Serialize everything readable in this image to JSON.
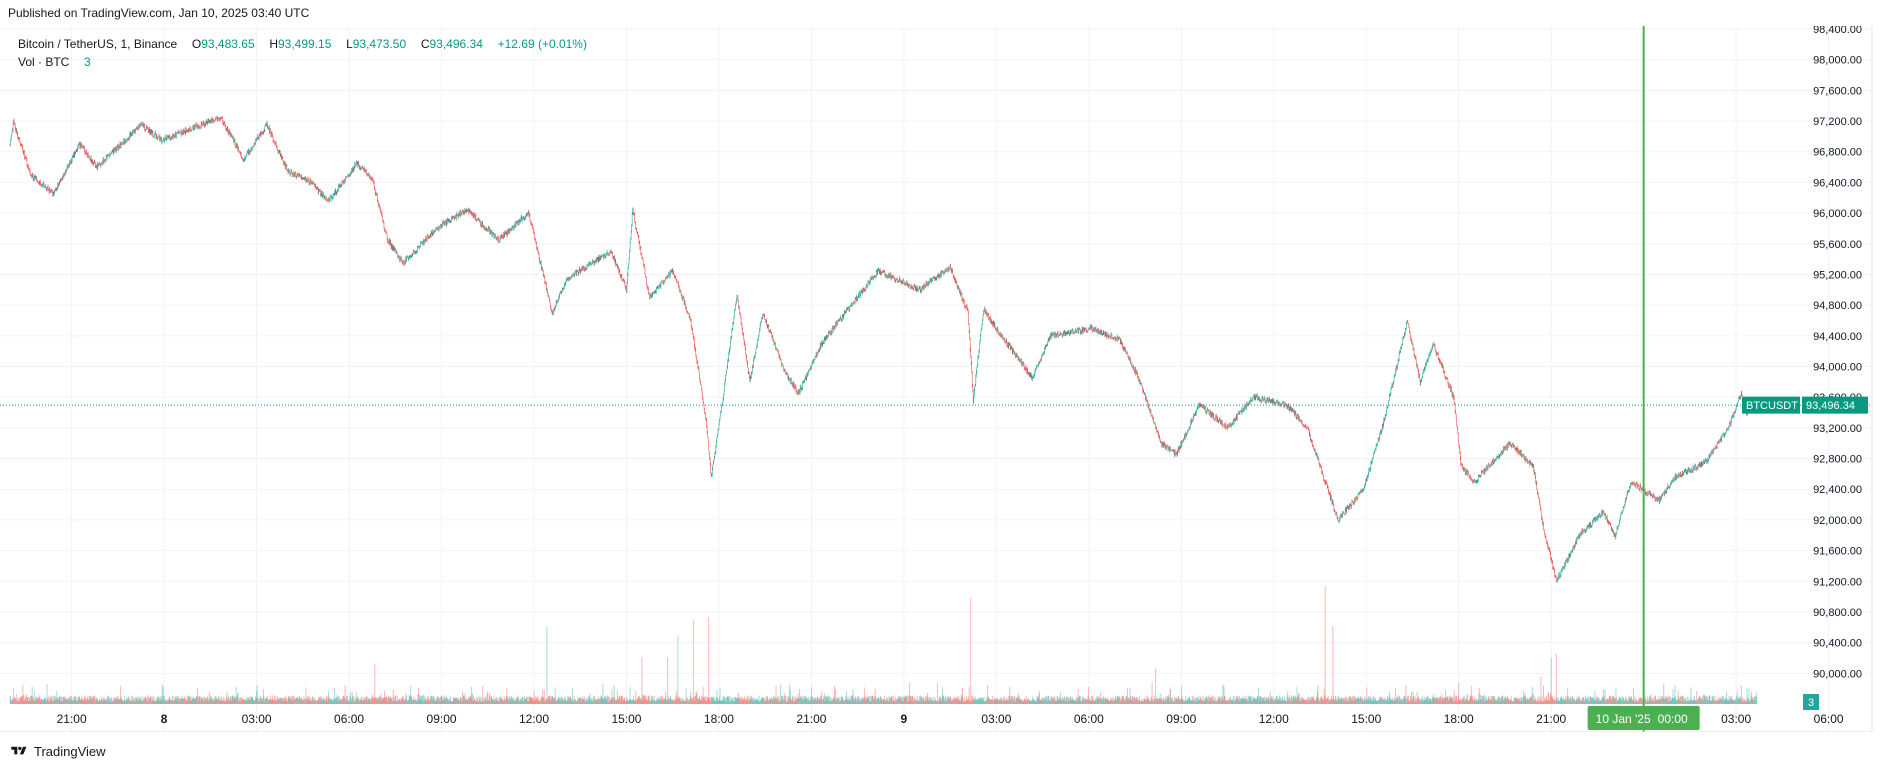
{
  "header": {
    "published": "Published on TradingView.com, Jan 10, 2025 03:40 UTC"
  },
  "legend": {
    "symbol": "Bitcoin / TetherUS, 1, Binance",
    "o_label": "O",
    "o_value": "93,483.65",
    "h_label": "H",
    "h_value": "93,499.15",
    "l_label": "L",
    "l_value": "93,473.50",
    "c_label": "C",
    "c_value": "93,496.34",
    "change": "+12.69 (+0.01%)",
    "vol_label": "Vol · BTC",
    "vol_value": "3"
  },
  "price_tag": {
    "symbol": "BTCUSDT",
    "value": "93,496.34"
  },
  "volume_tag": {
    "value": "3"
  },
  "crosshair_label": {
    "date": "10 Jan '25",
    "time": "00:00"
  },
  "footer": {
    "brand": "TradingView"
  },
  "colors": {
    "up": "#26a69a",
    "down": "#ef5350",
    "vol_up": "#26a69a",
    "vol_down": "#ef5350",
    "last_price": "#089981",
    "crosshair": "#4caf50",
    "grid": "#f0f3fa",
    "text": "#131722"
  },
  "chart_data": {
    "type": "candlestick",
    "interval_minutes": 1,
    "x_range": [
      "2025-01-07 19:00",
      "2025-01-10 07:05"
    ],
    "last_bar_time": "2025-01-10 03:40",
    "ylim": [
      89600,
      98400
    ],
    "y_ticks": [
      "98,400.00",
      "98,000.00",
      "97,600.00",
      "97,200.00",
      "96,800.00",
      "96,400.00",
      "96,000.00",
      "95,600.00",
      "95,200.00",
      "94,800.00",
      "94,400.00",
      "94,000.00",
      "93,600.00",
      "93,200.00",
      "92,800.00",
      "92,400.00",
      "92,000.00",
      "91,600.00",
      "91,200.00",
      "90,800.00",
      "90,400.00",
      "90,000.00"
    ],
    "x_ticks": [
      {
        "label": "21:00",
        "t": "2025-01-07 21:00",
        "bold": false
      },
      {
        "label": "8",
        "t": "2025-01-08 00:00",
        "bold": true
      },
      {
        "label": "03:00",
        "t": "2025-01-08 03:00",
        "bold": false
      },
      {
        "label": "06:00",
        "t": "2025-01-08 06:00",
        "bold": false
      },
      {
        "label": "09:00",
        "t": "2025-01-08 09:00",
        "bold": false
      },
      {
        "label": "12:00",
        "t": "2025-01-08 12:00",
        "bold": false
      },
      {
        "label": "15:00",
        "t": "2025-01-08 15:00",
        "bold": false
      },
      {
        "label": "18:00",
        "t": "2025-01-08 18:00",
        "bold": false
      },
      {
        "label": "21:00",
        "t": "2025-01-08 21:00",
        "bold": false
      },
      {
        "label": "9",
        "t": "2025-01-09 00:00",
        "bold": true
      },
      {
        "label": "03:00",
        "t": "2025-01-09 03:00",
        "bold": false
      },
      {
        "label": "06:00",
        "t": "2025-01-09 06:00",
        "bold": false
      },
      {
        "label": "09:00",
        "t": "2025-01-09 09:00",
        "bold": false
      },
      {
        "label": "12:00",
        "t": "2025-01-09 12:00",
        "bold": false
      },
      {
        "label": "15:00",
        "t": "2025-01-09 15:00",
        "bold": false
      },
      {
        "label": "18:00",
        "t": "2025-01-09 18:00",
        "bold": false
      },
      {
        "label": "21:00",
        "t": "2025-01-09 21:00",
        "bold": false
      },
      {
        "label": "03:00",
        "t": "2025-01-10 03:00",
        "bold": false
      },
      {
        "label": "06:00",
        "t": "2025-01-10 06:00",
        "bold": false
      }
    ],
    "crosshair_time": "2025-01-10 00:00",
    "last_price": 93496.34,
    "price_path": [
      {
        "t": "2025-01-07 19:00",
        "price": 96900
      },
      {
        "t": "2025-01-07 19:07",
        "price": 97180
      },
      {
        "t": "2025-01-07 19:40",
        "price": 96500
      },
      {
        "t": "2025-01-07 20:25",
        "price": 96250
      },
      {
        "t": "2025-01-07 21:15",
        "price": 96900
      },
      {
        "t": "2025-01-07 21:50",
        "price": 96600
      },
      {
        "t": "2025-01-07 23:15",
        "price": 97150
      },
      {
        "t": "2025-01-07 23:55",
        "price": 96950
      },
      {
        "t": "2025-01-08 01:50",
        "price": 97250
      },
      {
        "t": "2025-01-08 02:35",
        "price": 96700
      },
      {
        "t": "2025-01-08 03:20",
        "price": 97150
      },
      {
        "t": "2025-01-08 04:00",
        "price": 96550
      },
      {
        "t": "2025-01-08 04:45",
        "price": 96400
      },
      {
        "t": "2025-01-08 05:20",
        "price": 96150
      },
      {
        "t": "2025-01-08 06:15",
        "price": 96650
      },
      {
        "t": "2025-01-08 06:45",
        "price": 96450
      },
      {
        "t": "2025-01-08 07:15",
        "price": 95650
      },
      {
        "t": "2025-01-08 07:45",
        "price": 95350
      },
      {
        "t": "2025-01-08 08:50",
        "price": 95800
      },
      {
        "t": "2025-01-08 09:50",
        "price": 96050
      },
      {
        "t": "2025-01-08 10:50",
        "price": 95650
      },
      {
        "t": "2025-01-08 11:50",
        "price": 96000
      },
      {
        "t": "2025-01-08 12:35",
        "price": 94700
      },
      {
        "t": "2025-01-08 13:05",
        "price": 95150
      },
      {
        "t": "2025-01-08 14:30",
        "price": 95500
      },
      {
        "t": "2025-01-08 15:00",
        "price": 95000
      },
      {
        "t": "2025-01-08 15:12",
        "price": 96050
      },
      {
        "t": "2025-01-08 15:45",
        "price": 94900
      },
      {
        "t": "2025-01-08 16:30",
        "price": 95250
      },
      {
        "t": "2025-01-08 17:05",
        "price": 94600
      },
      {
        "t": "2025-01-08 17:35",
        "price": 93300
      },
      {
        "t": "2025-01-08 17:45",
        "price": 92550
      },
      {
        "t": "2025-01-08 18:10",
        "price": 93700
      },
      {
        "t": "2025-01-08 18:35",
        "price": 94950
      },
      {
        "t": "2025-01-08 19:00",
        "price": 93800
      },
      {
        "t": "2025-01-08 19:25",
        "price": 94700
      },
      {
        "t": "2025-01-08 20:10",
        "price": 93900
      },
      {
        "t": "2025-01-08 20:35",
        "price": 93650
      },
      {
        "t": "2025-01-08 21:20",
        "price": 94300
      },
      {
        "t": "2025-01-08 22:00",
        "price": 94650
      },
      {
        "t": "2025-01-08 23:10",
        "price": 95250
      },
      {
        "t": "2025-01-09 00:30",
        "price": 95000
      },
      {
        "t": "2025-01-09 01:30",
        "price": 95300
      },
      {
        "t": "2025-01-09 02:05",
        "price": 94700
      },
      {
        "t": "2025-01-09 02:15",
        "price": 93550
      },
      {
        "t": "2025-01-09 02:35",
        "price": 94750
      },
      {
        "t": "2025-01-09 03:10",
        "price": 94400
      },
      {
        "t": "2025-01-09 04:10",
        "price": 93850
      },
      {
        "t": "2025-01-09 04:45",
        "price": 94400
      },
      {
        "t": "2025-01-09 06:05",
        "price": 94500
      },
      {
        "t": "2025-01-09 07:00",
        "price": 94350
      },
      {
        "t": "2025-01-09 07:40",
        "price": 93800
      },
      {
        "t": "2025-01-09 08:20",
        "price": 93000
      },
      {
        "t": "2025-01-09 08:50",
        "price": 92850
      },
      {
        "t": "2025-01-09 09:35",
        "price": 93500
      },
      {
        "t": "2025-01-09 10:30",
        "price": 93200
      },
      {
        "t": "2025-01-09 11:20",
        "price": 93600
      },
      {
        "t": "2025-01-09 12:25",
        "price": 93500
      },
      {
        "t": "2025-01-09 13:05",
        "price": 93200
      },
      {
        "t": "2025-01-09 13:35",
        "price": 92600
      },
      {
        "t": "2025-01-09 14:05",
        "price": 92000
      },
      {
        "t": "2025-01-09 14:55",
        "price": 92400
      },
      {
        "t": "2025-01-09 15:35",
        "price": 93300
      },
      {
        "t": "2025-01-09 16:20",
        "price": 94600
      },
      {
        "t": "2025-01-09 16:45",
        "price": 93800
      },
      {
        "t": "2025-01-09 17:10",
        "price": 94300
      },
      {
        "t": "2025-01-09 17:50",
        "price": 93600
      },
      {
        "t": "2025-01-09 18:05",
        "price": 92700
      },
      {
        "t": "2025-01-09 18:30",
        "price": 92500
      },
      {
        "t": "2025-01-09 19:40",
        "price": 93000
      },
      {
        "t": "2025-01-09 20:25",
        "price": 92700
      },
      {
        "t": "2025-01-09 20:45",
        "price": 91900
      },
      {
        "t": "2025-01-09 21:10",
        "price": 91200
      },
      {
        "t": "2025-01-09 21:55",
        "price": 91800
      },
      {
        "t": "2025-01-09 22:40",
        "price": 92100
      },
      {
        "t": "2025-01-09 23:05",
        "price": 91800
      },
      {
        "t": "2025-01-09 23:35",
        "price": 92500
      },
      {
        "t": "2025-01-10 00:30",
        "price": 92250
      },
      {
        "t": "2025-01-10 01:00",
        "price": 92550
      },
      {
        "t": "2025-01-10 02:00",
        "price": 92750
      },
      {
        "t": "2025-01-10 02:45",
        "price": 93200
      },
      {
        "t": "2025-01-10 03:10",
        "price": 93650
      },
      {
        "t": "2025-01-10 03:20",
        "price": 93400
      },
      {
        "t": "2025-01-10 03:40",
        "price": 93496.34
      }
    ],
    "volume_spikes_btc": [
      {
        "t": "2025-01-08 06:50",
        "v": 26
      },
      {
        "t": "2025-01-08 12:25",
        "v": 50
      },
      {
        "t": "2025-01-08 15:30",
        "v": 30
      },
      {
        "t": "2025-01-08 16:20",
        "v": 30
      },
      {
        "t": "2025-01-08 16:40",
        "v": 44
      },
      {
        "t": "2025-01-08 17:10",
        "v": 54
      },
      {
        "t": "2025-01-08 17:40",
        "v": 56
      },
      {
        "t": "2025-01-09 02:10",
        "v": 68
      },
      {
        "t": "2025-01-09 08:10",
        "v": 23
      },
      {
        "t": "2025-01-09 13:40",
        "v": 76
      },
      {
        "t": "2025-01-09 13:55",
        "v": 50
      },
      {
        "t": "2025-01-09 18:00",
        "v": 14
      },
      {
        "t": "2025-01-09 20:40",
        "v": 18
      },
      {
        "t": "2025-01-09 21:00",
        "v": 30
      },
      {
        "t": "2025-01-09 21:10",
        "v": 32
      },
      {
        "t": "2025-01-10 03:10",
        "v": 12
      },
      {
        "t": "2025-01-10 03:25",
        "v": 10
      }
    ]
  }
}
